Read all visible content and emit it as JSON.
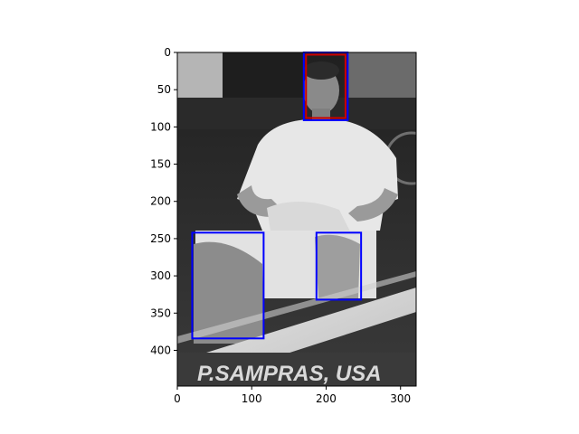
{
  "figure": {
    "image_extent": {
      "width": 321,
      "height": 448
    },
    "image_description": "Grayscale photo of a tennis player seated in a courtside chair, white polo and shorts, towel on lap; banner at bottom reads P.SAMPRAS, USA",
    "banner_text": "P.SAMPRAS, USA",
    "x_ticks": [
      0,
      100,
      200,
      300
    ],
    "y_ticks": [
      0,
      50,
      100,
      150,
      200,
      250,
      300,
      350,
      400
    ],
    "boxes": [
      {
        "label": "face",
        "color": "#0000ff",
        "x0": 170,
        "y0": 0,
        "x1": 229,
        "y1": 91
      },
      {
        "label": "face-inner",
        "color": "#cc0000",
        "x0": 173,
        "y0": 3,
        "x1": 226,
        "y1": 88
      },
      {
        "label": "left-knee",
        "color": "#0000ff",
        "x0": 20,
        "y0": 242,
        "x1": 116,
        "y1": 384
      },
      {
        "label": "right-knee",
        "color": "#0000ff",
        "x0": 187,
        "y0": 242,
        "x1": 247,
        "y1": 332
      }
    ]
  }
}
